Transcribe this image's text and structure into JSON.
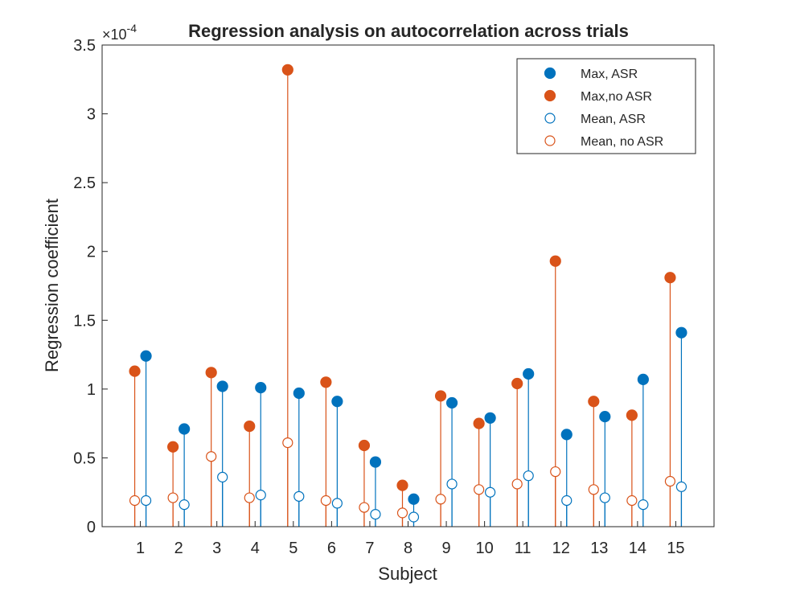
{
  "chart_data": {
    "type": "scatter",
    "style": "stem",
    "title": "Regression analysis on autocorrelation across trials",
    "xlabel": "Subject",
    "ylabel": "Regression coefficient",
    "y_exponent_label": "×10",
    "y_exponent_power": "-4",
    "y_scale": 0.0001,
    "xlim": [
      0,
      16
    ],
    "ylim": [
      0,
      3.5
    ],
    "xticks": [
      "1",
      "2",
      "3",
      "4",
      "5",
      "6",
      "7",
      "8",
      "9",
      "10",
      "11",
      "12",
      "13",
      "14",
      "15"
    ],
    "yticks": [
      "0",
      "0.5",
      "1",
      "1.5",
      "2",
      "2.5",
      "3",
      "3.5"
    ],
    "grid": false,
    "legend_position": "top-right",
    "series": [
      {
        "name": "Max, ASR",
        "color": "#0072BD",
        "marker": "filled-circle",
        "stem_group": "ASR",
        "values": [
          1.24,
          0.71,
          1.02,
          1.01,
          0.97,
          0.91,
          0.47,
          0.2,
          0.9,
          0.79,
          1.11,
          0.67,
          0.8,
          1.07,
          1.41
        ]
      },
      {
        "name": "Max,no ASR",
        "color": "#D95319",
        "marker": "filled-circle",
        "stem_group": "noASR",
        "values": [
          1.13,
          0.58,
          1.12,
          0.73,
          3.32,
          1.05,
          0.59,
          0.3,
          0.95,
          0.75,
          1.04,
          1.93,
          0.91,
          0.81,
          1.81
        ]
      },
      {
        "name": "Mean, ASR",
        "color": "#0072BD",
        "marker": "open-circle",
        "stem_group": "ASR",
        "values": [
          0.19,
          0.16,
          0.36,
          0.23,
          0.22,
          0.17,
          0.09,
          0.07,
          0.31,
          0.25,
          0.37,
          0.19,
          0.21,
          0.16,
          0.29
        ]
      },
      {
        "name": "Mean, no ASR",
        "color": "#D95319",
        "marker": "open-circle",
        "stem_group": "noASR",
        "values": [
          0.19,
          0.21,
          0.51,
          0.21,
          0.61,
          0.19,
          0.14,
          0.1,
          0.2,
          0.27,
          0.31,
          0.4,
          0.27,
          0.19,
          0.33
        ]
      }
    ]
  }
}
